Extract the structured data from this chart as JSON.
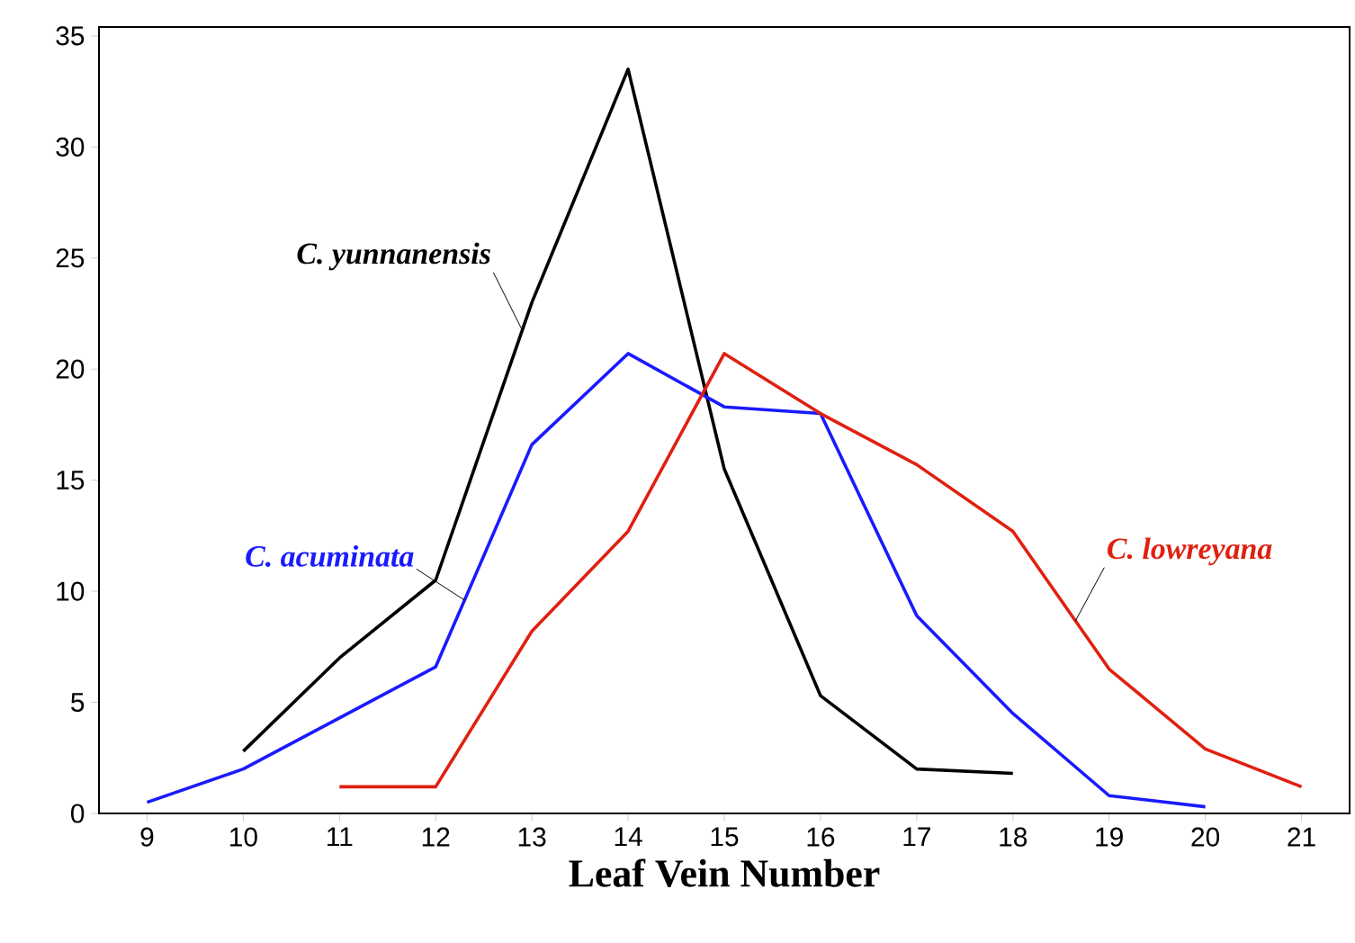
{
  "chart_data": {
    "type": "line",
    "xlabel": "Leaf Vein Number",
    "x": [
      9,
      10,
      11,
      12,
      13,
      14,
      15,
      16,
      17,
      18,
      19,
      20,
      21
    ],
    "series": [
      {
        "name": "C. yunnanensis",
        "color": "#000000",
        "values": [
          null,
          2.8,
          7,
          10.5,
          23,
          33.5,
          15.5,
          5.3,
          2,
          1.8,
          null,
          null,
          null
        ]
      },
      {
        "name": "C. acuminata",
        "color": "#1a1aff",
        "values": [
          0.5,
          2,
          4.3,
          6.6,
          16.6,
          20.7,
          18.3,
          18,
          8.9,
          4.5,
          0.8,
          0.3,
          null
        ]
      },
      {
        "name": "C. lowreyana",
        "color": "#e02010",
        "values": [
          null,
          null,
          1.2,
          1.2,
          8.2,
          12.7,
          20.7,
          18,
          15.7,
          12.7,
          6.5,
          2.9,
          1.2
        ]
      }
    ],
    "xlim": [
      8.5,
      21.5
    ],
    "ylim": [
      0,
      35.4
    ],
    "xticks": [
      9,
      10,
      11,
      12,
      13,
      14,
      15,
      16,
      17,
      18,
      19,
      20,
      21
    ],
    "yticks": [
      0,
      5,
      10,
      15,
      20,
      25,
      30,
      35
    ],
    "grid": false,
    "legend": false,
    "marker": "none",
    "line_style": "solid"
  }
}
